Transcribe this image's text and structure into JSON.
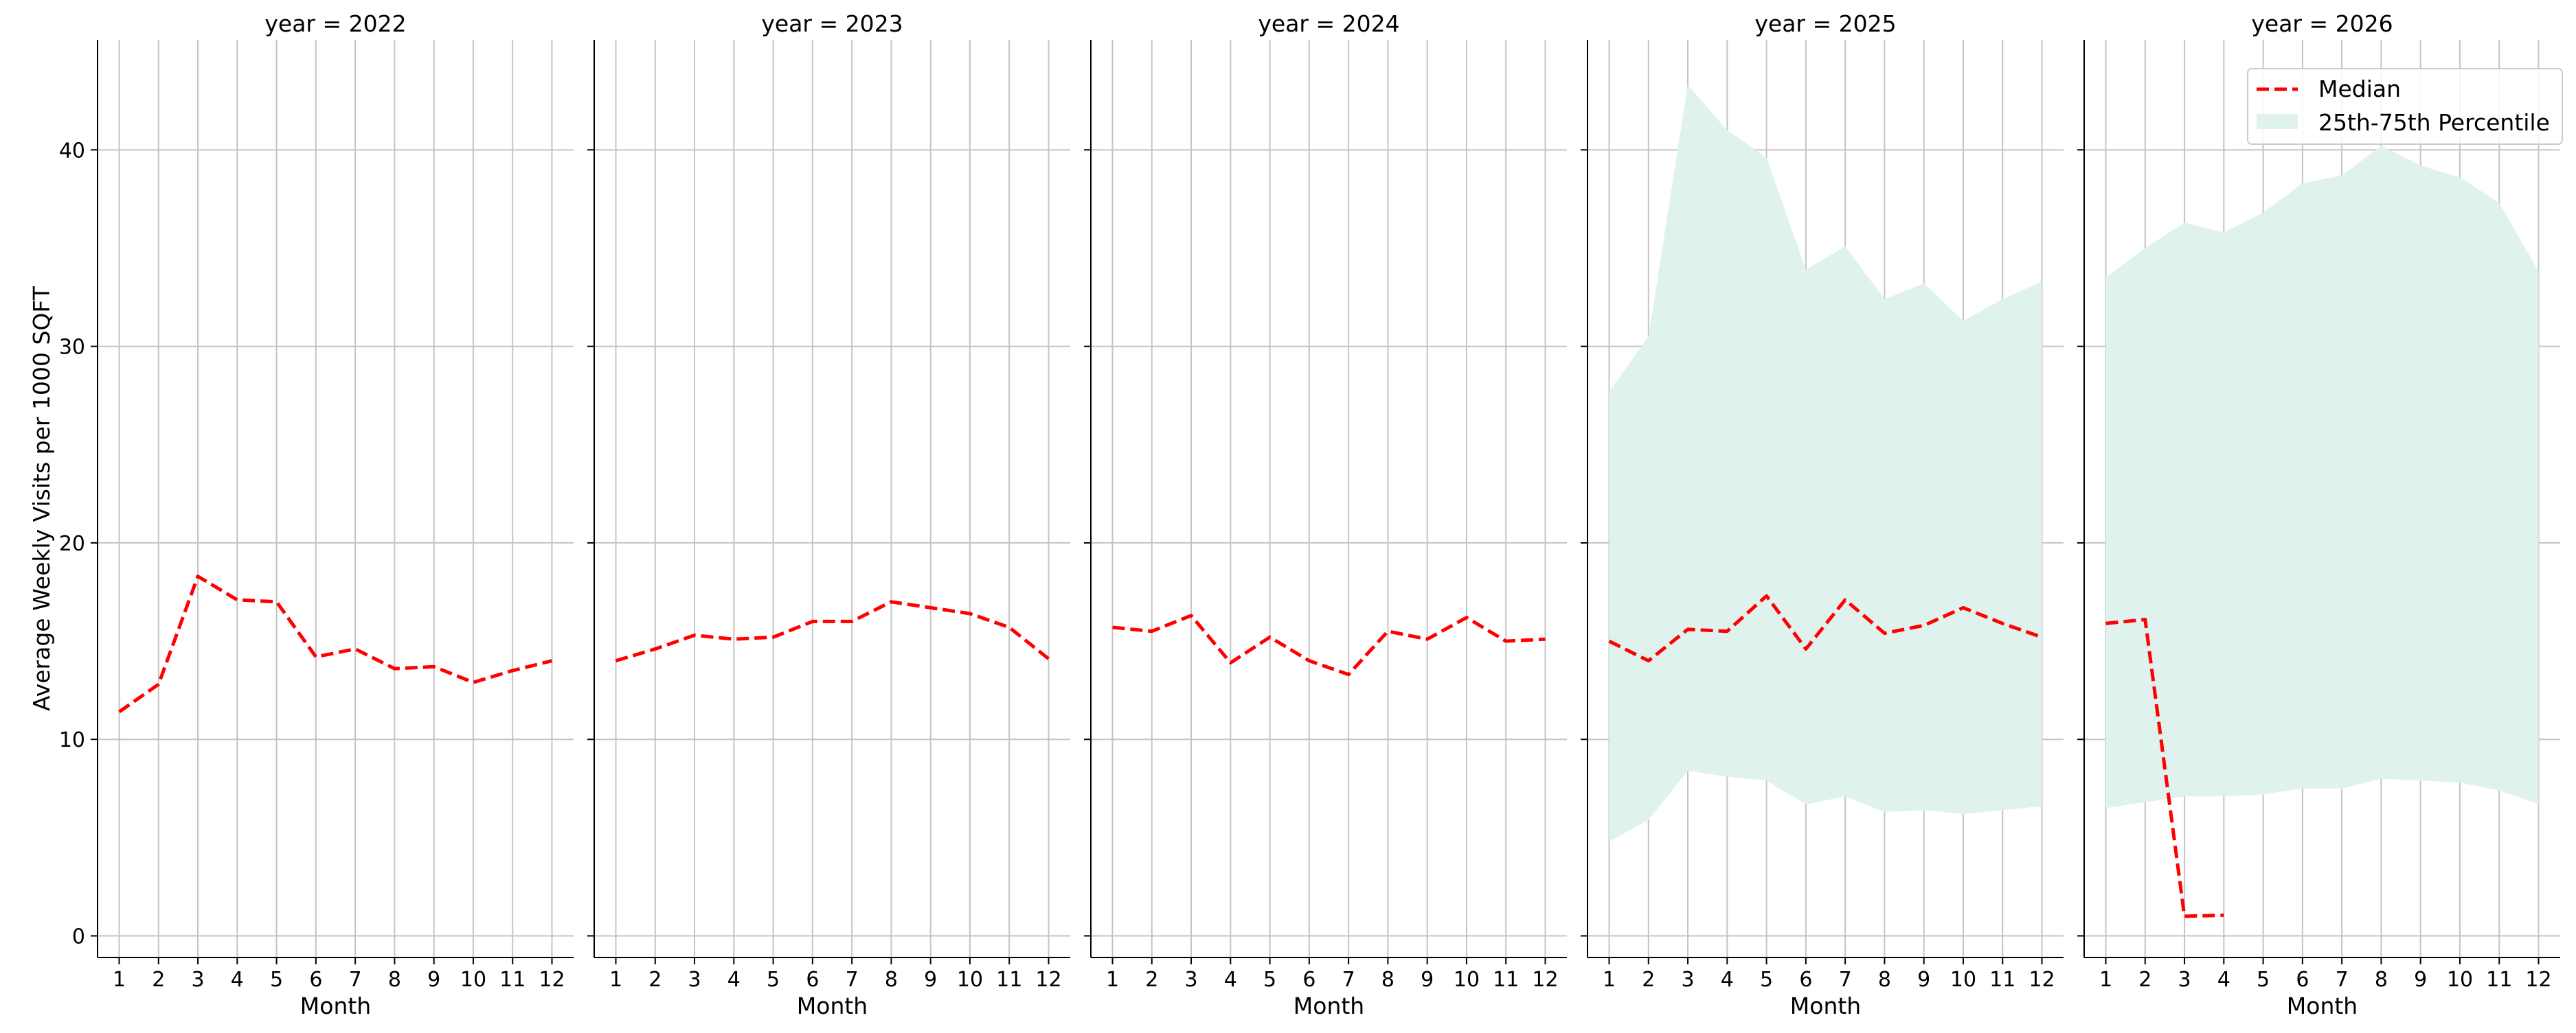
{
  "chart_data": {
    "type": "line",
    "ylabel": "Average Weekly Visits per 1000 SQFT",
    "xlabel": "Month",
    "x": [
      1,
      2,
      3,
      4,
      5,
      6,
      7,
      8,
      9,
      10,
      11,
      12
    ],
    "x_tick_labels": [
      "1",
      "2",
      "3",
      "4",
      "5",
      "6",
      "7",
      "8",
      "9",
      "10",
      "11",
      "12"
    ],
    "xlim": [
      0.45,
      12.55
    ],
    "ylim": [
      -1.1,
      45.6
    ],
    "y_ticks": [
      0,
      10,
      20,
      30,
      40
    ],
    "grid": true,
    "legend": {
      "placement": "top-right",
      "entries": [
        "Median",
        "25th-75th Percentile"
      ]
    },
    "colors": {
      "median": "#ff0000",
      "band": "#dff2ed",
      "grid": "#c4c4c4"
    },
    "panels": [
      {
        "title": "year = 2022",
        "median": [
          11.4,
          12.8,
          18.3,
          17.1,
          17.0,
          14.2,
          14.6,
          13.6,
          13.7,
          12.9,
          13.5,
          14.0
        ]
      },
      {
        "title": "year = 2023",
        "median": [
          14.0,
          14.6,
          15.3,
          15.1,
          15.2,
          16.0,
          16.0,
          17.0,
          16.7,
          16.4,
          15.7,
          14.1
        ]
      },
      {
        "title": "year = 2024",
        "median": [
          15.7,
          15.5,
          16.3,
          13.9,
          15.2,
          14.0,
          13.3,
          15.5,
          15.1,
          16.2,
          15.0,
          15.1
        ]
      },
      {
        "title": "year = 2025",
        "median": [
          15.0,
          14.0,
          15.6,
          15.5,
          17.3,
          14.6,
          17.1,
          15.4,
          15.8,
          16.7,
          15.9,
          15.2
        ],
        "p25": [
          4.8,
          5.9,
          8.4,
          8.1,
          7.9,
          6.7,
          7.1,
          6.3,
          6.4,
          6.2,
          6.4,
          6.6
        ],
        "p75": [
          27.7,
          30.5,
          43.3,
          41.0,
          39.6,
          33.9,
          35.1,
          32.4,
          33.2,
          31.3,
          32.4,
          33.3
        ]
      },
      {
        "title": "year = 2026",
        "median": [
          15.9,
          16.1,
          1.0,
          1.05,
          null,
          null,
          null,
          null,
          null,
          null,
          null,
          null
        ],
        "p25": [
          6.5,
          6.8,
          7.1,
          7.1,
          7.2,
          7.5,
          7.5,
          8.0,
          7.9,
          7.8,
          7.4,
          6.7
        ],
        "p75": [
          33.5,
          35.0,
          36.3,
          35.8,
          36.8,
          38.3,
          38.7,
          40.2,
          39.2,
          38.6,
          37.3,
          33.8
        ]
      }
    ]
  }
}
